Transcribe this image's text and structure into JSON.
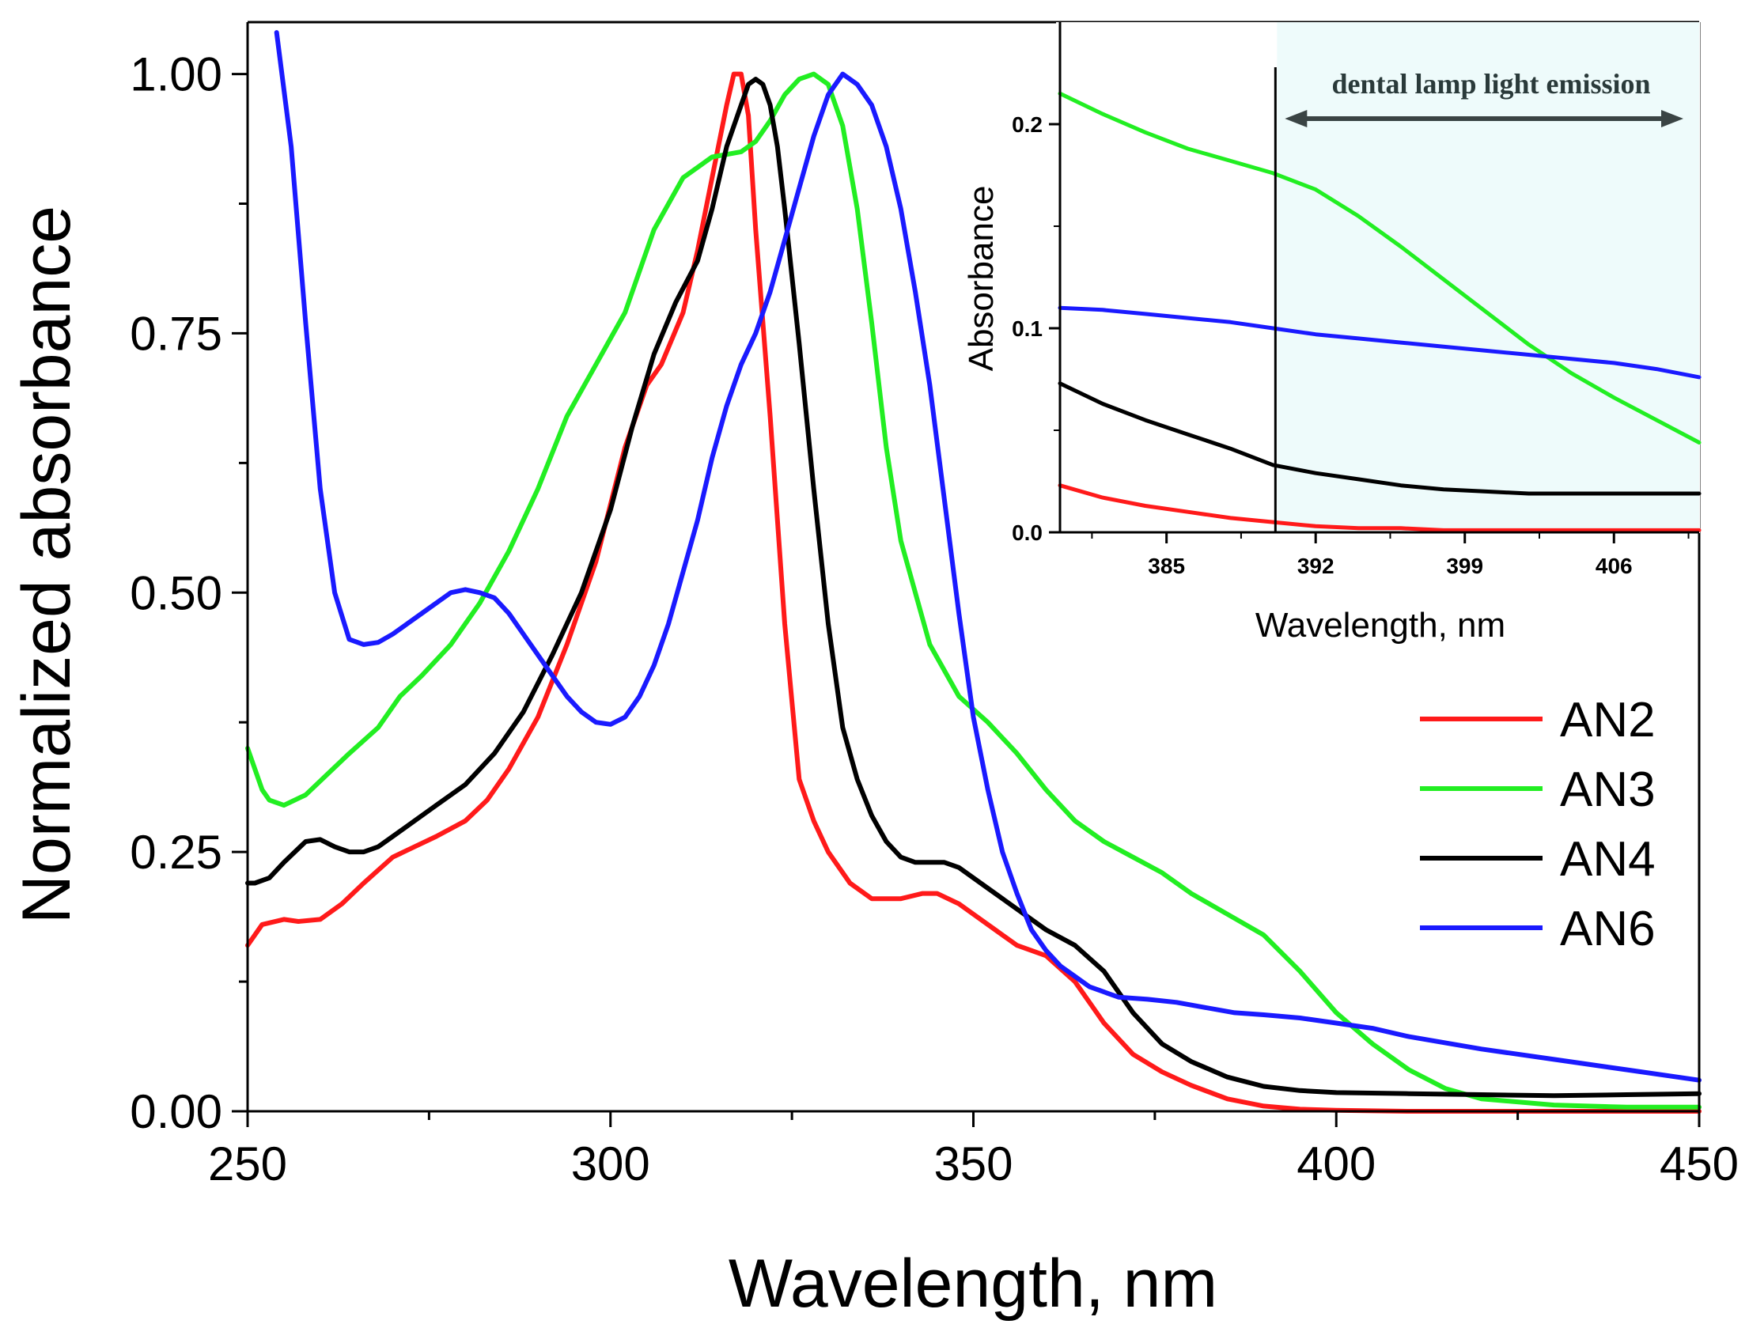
{
  "chart_data": [
    {
      "type": "line",
      "xlabel": "Wavelength, nm",
      "ylabel": "Normalized absorbance",
      "xlim": [
        250,
        450
      ],
      "ylim": [
        0,
        1.05
      ],
      "xticks": [
        "250",
        "300",
        "350",
        "400",
        "450"
      ],
      "yticks": [
        "0.00",
        "0.25",
        "0.50",
        "0.75",
        "1.00"
      ],
      "grid": false,
      "legend_position": "right",
      "series": [
        {
          "name": "AN2",
          "color": "#ff1a1a",
          "x": [
            250,
            252,
            255,
            257,
            260,
            263,
            266,
            270,
            273,
            276,
            280,
            283,
            286,
            290,
            294,
            298,
            302,
            305,
            307,
            310,
            312,
            314,
            316,
            317,
            318,
            319,
            320,
            322,
            324,
            326,
            328,
            330,
            333,
            336,
            340,
            343,
            345,
            348,
            350,
            353,
            356,
            360,
            364,
            368,
            372,
            376,
            380,
            385,
            390,
            395,
            400,
            410,
            420,
            430,
            440,
            450
          ],
          "y": [
            0.16,
            0.18,
            0.185,
            0.183,
            0.185,
            0.2,
            0.22,
            0.245,
            0.255,
            0.265,
            0.28,
            0.3,
            0.33,
            0.38,
            0.45,
            0.53,
            0.64,
            0.7,
            0.72,
            0.77,
            0.83,
            0.9,
            0.97,
            1.0,
            1.0,
            0.96,
            0.85,
            0.67,
            0.47,
            0.32,
            0.28,
            0.25,
            0.22,
            0.205,
            0.205,
            0.21,
            0.21,
            0.2,
            0.19,
            0.175,
            0.16,
            0.15,
            0.125,
            0.085,
            0.055,
            0.038,
            0.025,
            0.012,
            0.005,
            0.002,
            0.001,
            0.0,
            0.0,
            0.0,
            0.0,
            0.0
          ]
        },
        {
          "name": "AN3",
          "color": "#22ee22",
          "x": [
            250,
            252,
            253,
            255,
            258,
            261,
            264,
            268,
            271,
            274,
            278,
            282,
            286,
            290,
            294,
            298,
            302,
            306,
            310,
            314,
            318,
            320,
            322,
            324,
            326,
            328,
            330,
            332,
            334,
            336,
            338,
            340,
            344,
            348,
            352,
            356,
            360,
            364,
            368,
            372,
            376,
            380,
            385,
            390,
            395,
            400,
            405,
            410,
            415,
            420,
            430,
            440,
            450
          ],
          "y": [
            0.35,
            0.31,
            0.3,
            0.295,
            0.305,
            0.325,
            0.345,
            0.37,
            0.4,
            0.42,
            0.45,
            0.49,
            0.54,
            0.6,
            0.67,
            0.72,
            0.77,
            0.85,
            0.9,
            0.92,
            0.925,
            0.935,
            0.955,
            0.98,
            0.995,
            1.0,
            0.99,
            0.95,
            0.87,
            0.76,
            0.64,
            0.55,
            0.45,
            0.4,
            0.375,
            0.345,
            0.31,
            0.28,
            0.26,
            0.245,
            0.23,
            0.21,
            0.19,
            0.17,
            0.135,
            0.095,
            0.065,
            0.04,
            0.022,
            0.012,
            0.006,
            0.004,
            0.004
          ]
        },
        {
          "name": "AN4",
          "color": "#000000",
          "x": [
            250,
            251,
            253,
            255,
            258,
            260,
            262,
            264,
            266,
            268,
            270,
            273,
            276,
            280,
            284,
            288,
            292,
            296,
            300,
            303,
            306,
            309,
            312,
            314,
            316,
            318,
            319,
            320,
            321,
            322,
            323,
            324,
            326,
            328,
            330,
            332,
            334,
            336,
            338,
            340,
            342,
            344,
            346,
            348,
            352,
            356,
            360,
            364,
            368,
            372,
            376,
            380,
            385,
            390,
            395,
            400,
            410,
            420,
            430,
            440,
            450
          ],
          "y": [
            0.22,
            0.22,
            0.225,
            0.24,
            0.26,
            0.262,
            0.255,
            0.25,
            0.25,
            0.255,
            0.265,
            0.28,
            0.295,
            0.315,
            0.345,
            0.385,
            0.44,
            0.5,
            0.58,
            0.66,
            0.73,
            0.78,
            0.82,
            0.87,
            0.93,
            0.97,
            0.99,
            0.995,
            0.99,
            0.97,
            0.93,
            0.87,
            0.74,
            0.6,
            0.47,
            0.37,
            0.32,
            0.285,
            0.26,
            0.245,
            0.24,
            0.24,
            0.24,
            0.235,
            0.215,
            0.195,
            0.175,
            0.16,
            0.135,
            0.095,
            0.065,
            0.048,
            0.033,
            0.024,
            0.02,
            0.018,
            0.017,
            0.016,
            0.015,
            0.016,
            0.017
          ]
        },
        {
          "name": "AN6",
          "color": "#1a1aff",
          "x": [
            254,
            256,
            258,
            260,
            262,
            264,
            266,
            268,
            270,
            272,
            274,
            276,
            278,
            280,
            282,
            284,
            286,
            288,
            290,
            292,
            294,
            296,
            298,
            300,
            302,
            304,
            306,
            308,
            310,
            312,
            314,
            316,
            318,
            320,
            322,
            324,
            326,
            328,
            330,
            332,
            334,
            336,
            338,
            340,
            342,
            344,
            346,
            348,
            350,
            352,
            354,
            356,
            358,
            360,
            362,
            364,
            366,
            370,
            374,
            378,
            382,
            386,
            390,
            395,
            400,
            405,
            410,
            420,
            430,
            440,
            450
          ],
          "y": [
            1.04,
            0.93,
            0.76,
            0.6,
            0.5,
            0.455,
            0.45,
            0.452,
            0.46,
            0.47,
            0.48,
            0.49,
            0.5,
            0.503,
            0.5,
            0.495,
            0.48,
            0.46,
            0.44,
            0.42,
            0.4,
            0.385,
            0.375,
            0.373,
            0.38,
            0.4,
            0.43,
            0.47,
            0.52,
            0.57,
            0.63,
            0.68,
            0.72,
            0.75,
            0.79,
            0.84,
            0.89,
            0.94,
            0.98,
            1.0,
            0.99,
            0.97,
            0.93,
            0.87,
            0.79,
            0.7,
            0.59,
            0.48,
            0.38,
            0.31,
            0.25,
            0.21,
            0.175,
            0.155,
            0.14,
            0.13,
            0.12,
            0.11,
            0.108,
            0.105,
            0.1,
            0.095,
            0.093,
            0.09,
            0.085,
            0.08,
            0.072,
            0.06,
            0.05,
            0.04,
            0.03
          ]
        }
      ]
    },
    {
      "type": "line",
      "xlabel": "Wavelength, nm",
      "ylabel": "Absorbance",
      "xlim": [
        380,
        410
      ],
      "ylim": [
        0,
        0.25
      ],
      "xticks": [
        "385",
        "392",
        "399",
        "406"
      ],
      "yticks": [
        "0.0",
        "0.1",
        "0.2"
      ],
      "grid": false,
      "annotation": "dental lamp light emission",
      "highlight_start": 390,
      "series": [
        {
          "name": "AN2",
          "color": "#ff1a1a",
          "x": [
            380,
            382,
            384,
            386,
            388,
            390,
            392,
            394,
            396,
            398,
            400,
            402,
            404,
            406,
            408,
            410
          ],
          "y": [
            0.023,
            0.017,
            0.013,
            0.01,
            0.007,
            0.005,
            0.003,
            0.002,
            0.002,
            0.001,
            0.001,
            0.001,
            0.001,
            0.001,
            0.001,
            0.001
          ]
        },
        {
          "name": "AN3",
          "color": "#22ee22",
          "x": [
            380,
            382,
            384,
            386,
            388,
            390,
            392,
            394,
            396,
            398,
            400,
            402,
            404,
            406,
            408,
            410
          ],
          "y": [
            0.215,
            0.205,
            0.196,
            0.188,
            0.182,
            0.176,
            0.168,
            0.155,
            0.14,
            0.124,
            0.108,
            0.092,
            0.078,
            0.066,
            0.055,
            0.044
          ]
        },
        {
          "name": "AN4",
          "color": "#000000",
          "x": [
            380,
            382,
            384,
            386,
            388,
            390,
            392,
            394,
            396,
            398,
            400,
            402,
            404,
            406,
            408,
            410
          ],
          "y": [
            0.073,
            0.063,
            0.055,
            0.048,
            0.041,
            0.033,
            0.029,
            0.026,
            0.023,
            0.021,
            0.02,
            0.019,
            0.019,
            0.019,
            0.019,
            0.019
          ]
        },
        {
          "name": "AN6",
          "color": "#1a1aff",
          "x": [
            380,
            382,
            384,
            386,
            388,
            390,
            392,
            394,
            396,
            398,
            400,
            402,
            404,
            406,
            408,
            410
          ],
          "y": [
            0.11,
            0.109,
            0.107,
            0.105,
            0.103,
            0.1,
            0.097,
            0.095,
            0.093,
            0.091,
            0.089,
            0.087,
            0.085,
            0.083,
            0.08,
            0.076
          ]
        }
      ]
    }
  ]
}
